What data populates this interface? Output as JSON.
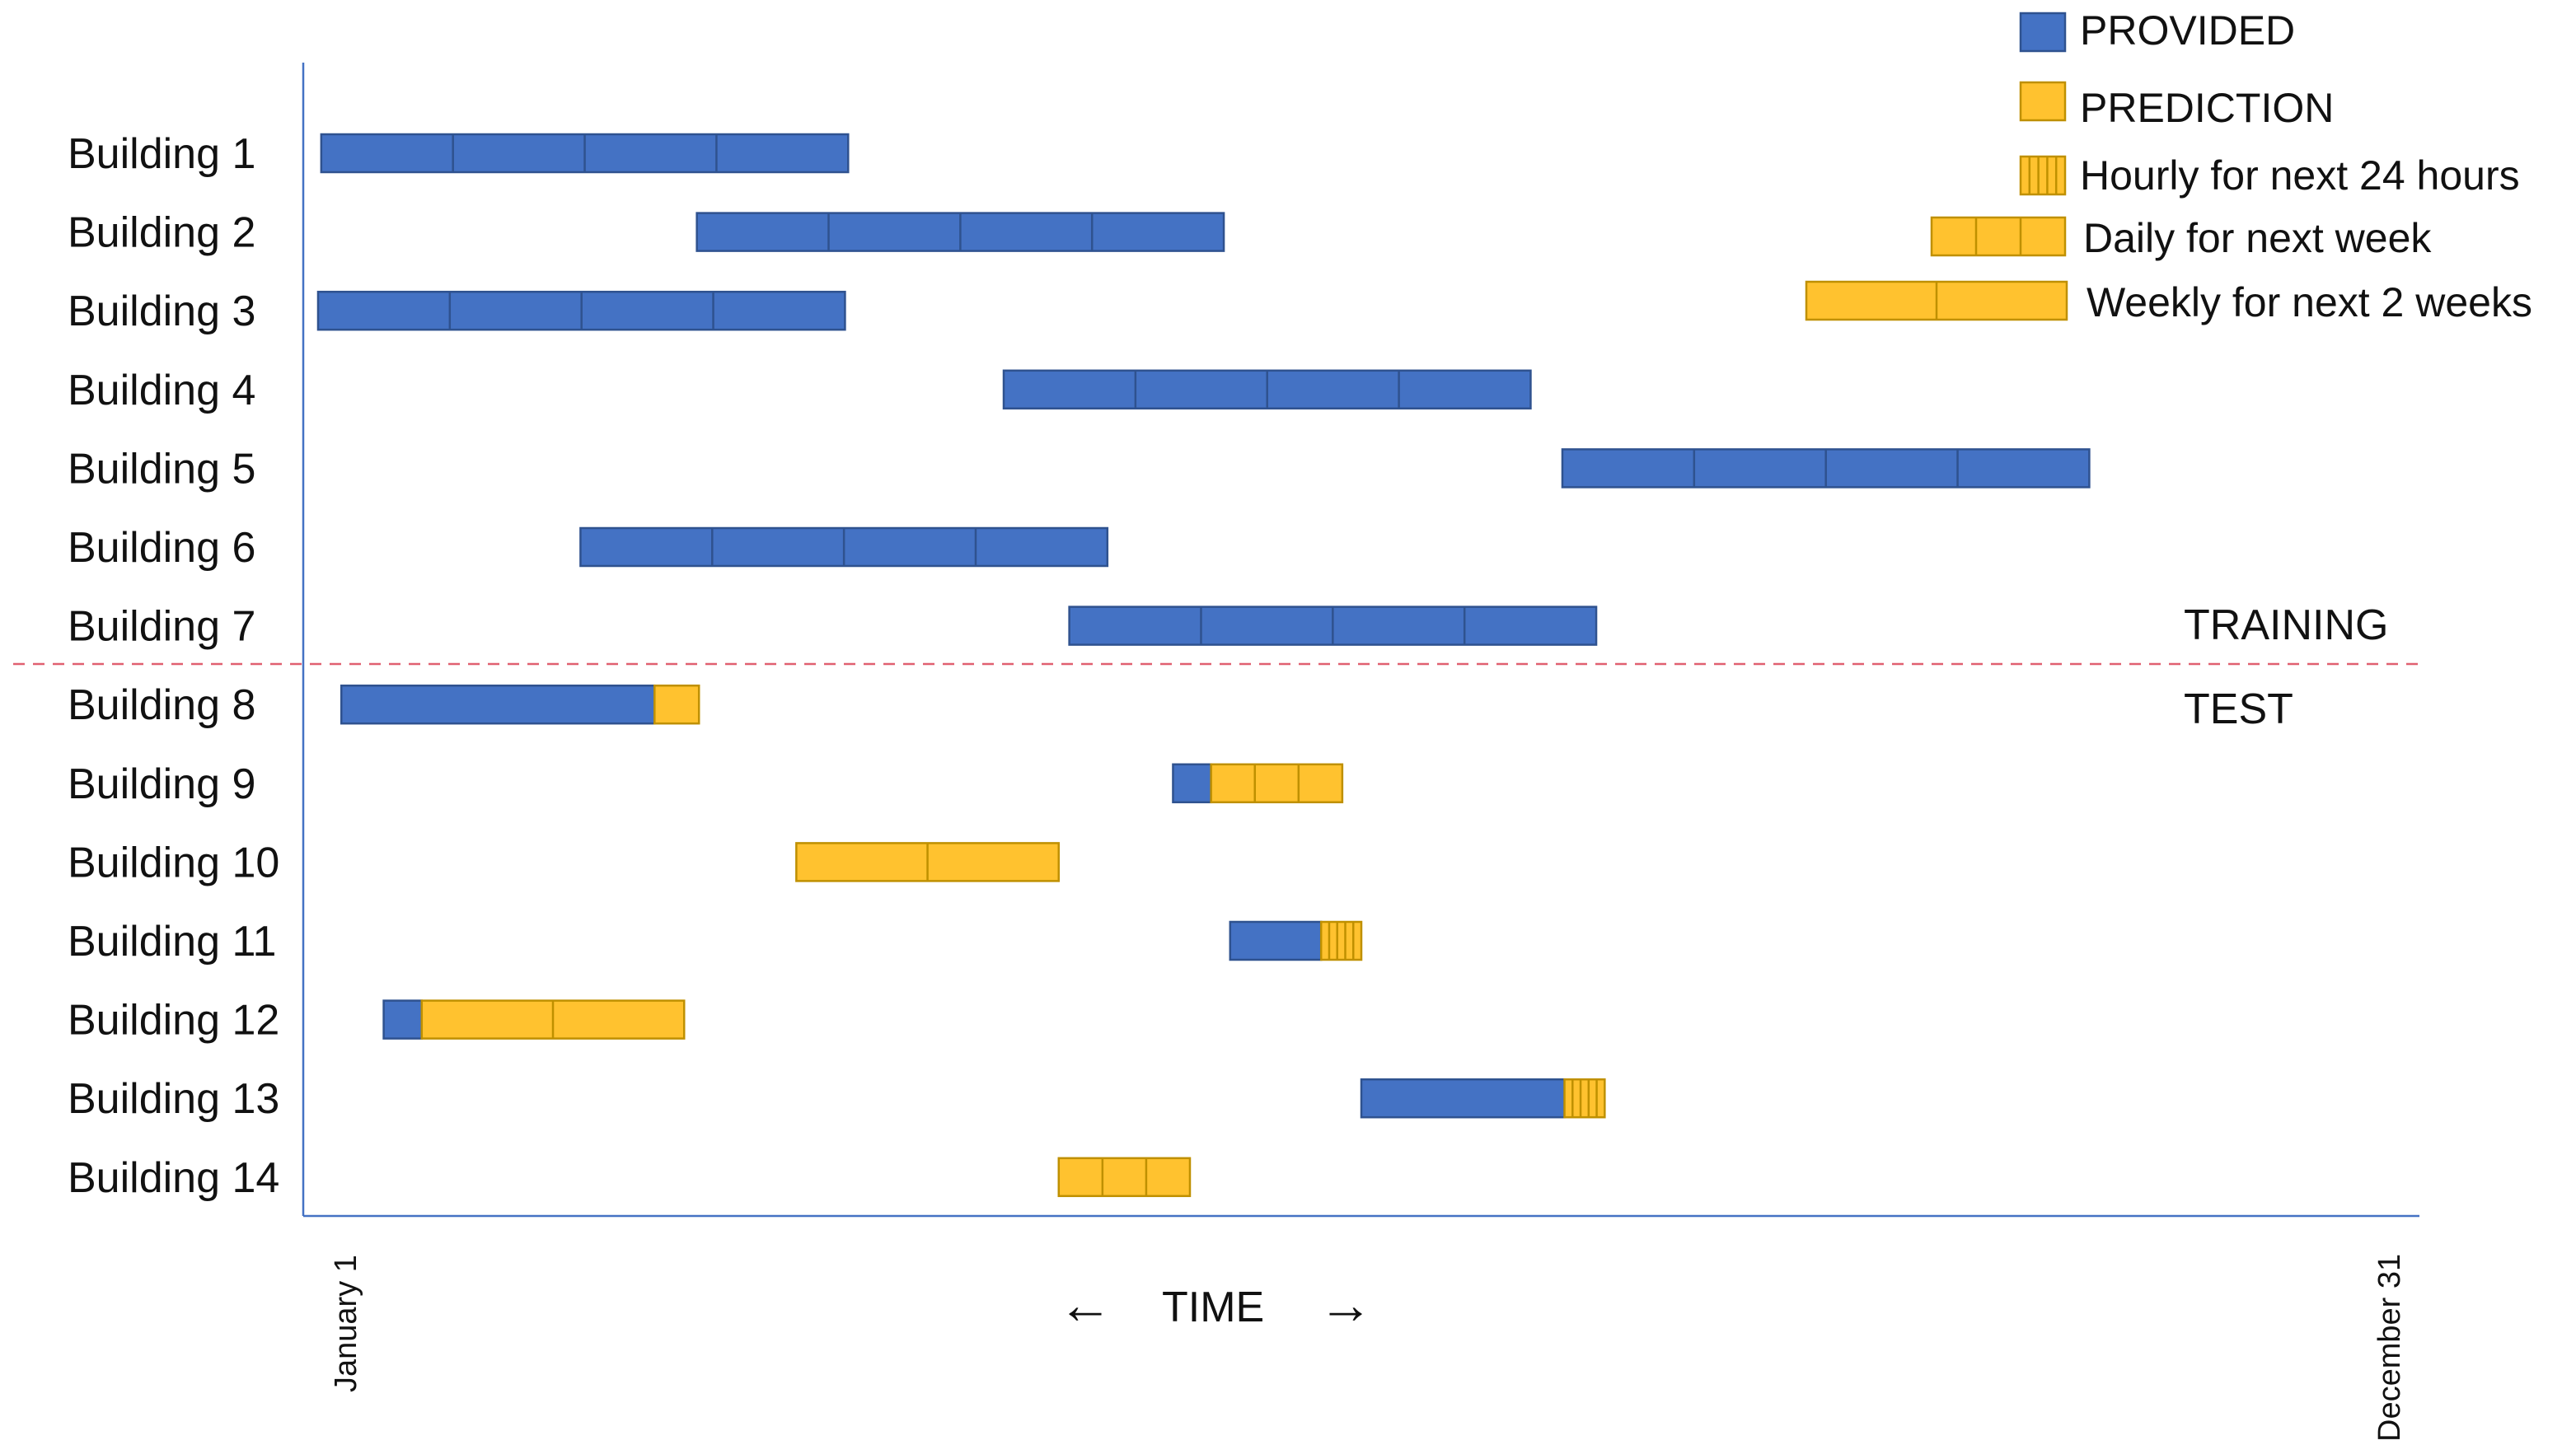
{
  "rows": [
    {
      "label": "Building 1",
      "segments": [
        {
          "type": "provided",
          "start": 0.0085,
          "end": 0.2575,
          "cells": 4
        }
      ]
    },
    {
      "label": "Building 2",
      "segments": [
        {
          "type": "provided",
          "start": 0.186,
          "end": 0.435,
          "cells": 4
        }
      ]
    },
    {
      "label": "Building 3",
      "segments": [
        {
          "type": "provided",
          "start": 0.007,
          "end": 0.256,
          "cells": 4
        }
      ]
    },
    {
      "label": "Building 4",
      "segments": [
        {
          "type": "provided",
          "start": 0.331,
          "end": 0.58,
          "cells": 4
        }
      ]
    },
    {
      "label": "Building 5",
      "segments": [
        {
          "type": "provided",
          "start": 0.595,
          "end": 0.844,
          "cells": 4
        }
      ]
    },
    {
      "label": "Building 6",
      "segments": [
        {
          "type": "provided",
          "start": 0.131,
          "end": 0.38,
          "cells": 4
        }
      ]
    },
    {
      "label": "Building 7",
      "segments": [
        {
          "type": "provided",
          "start": 0.362,
          "end": 0.611,
          "cells": 4
        }
      ]
    },
    {
      "label": "Building 8",
      "segments": [
        {
          "type": "provided",
          "start": 0.018,
          "end": 0.166,
          "cells": 1
        },
        {
          "type": "daily",
          "start": 0.166,
          "end": 0.187,
          "cells": 1
        }
      ]
    },
    {
      "label": "Building 9",
      "segments": [
        {
          "type": "provided",
          "start": 0.411,
          "end": 0.429,
          "cells": 1
        },
        {
          "type": "daily",
          "start": 0.429,
          "end": 0.491,
          "cells": 3
        }
      ]
    },
    {
      "label": "Building 10",
      "segments": [
        {
          "type": "weekly",
          "start": 0.233,
          "end": 0.357,
          "cells": 2
        }
      ]
    },
    {
      "label": "Building 11",
      "segments": [
        {
          "type": "provided",
          "start": 0.438,
          "end": 0.481,
          "cells": 1
        },
        {
          "type": "hourly",
          "start": 0.481,
          "end": 0.5,
          "cells": 5
        }
      ]
    },
    {
      "label": "Building 12",
      "segments": [
        {
          "type": "provided",
          "start": 0.038,
          "end": 0.056,
          "cells": 1
        },
        {
          "type": "weekly",
          "start": 0.056,
          "end": 0.18,
          "cells": 2
        }
      ]
    },
    {
      "label": "Building 13",
      "segments": [
        {
          "type": "provided",
          "start": 0.5,
          "end": 0.596,
          "cells": 1
        },
        {
          "type": "hourly",
          "start": 0.596,
          "end": 0.615,
          "cells": 5
        }
      ]
    },
    {
      "label": "Building 14",
      "segments": [
        {
          "type": "daily",
          "start": 0.357,
          "end": 0.419,
          "cells": 3
        }
      ]
    }
  ],
  "split_after_row": 7,
  "training_label": "TRAINING",
  "test_label": "TEST",
  "axis": {
    "start_label": "January 1",
    "end_label": "December 31",
    "time_label": "TIME",
    "left_arrow": "←",
    "right_arrow": "→"
  },
  "legend": {
    "provided": "PROVIDED",
    "prediction": "PREDICTION",
    "hourly": "Hourly for next 24 hours",
    "daily": "Daily for next week",
    "weekly": "Weekly for next 2 weeks"
  },
  "colors": {
    "provided": "#4472C4",
    "provided_border": "#2F528F",
    "prediction": "#FFC000",
    "prediction_fill": "#FFC22F",
    "prediction_border": "#BF9000",
    "axis": "#4472C4",
    "split_line": "#E06070"
  }
}
